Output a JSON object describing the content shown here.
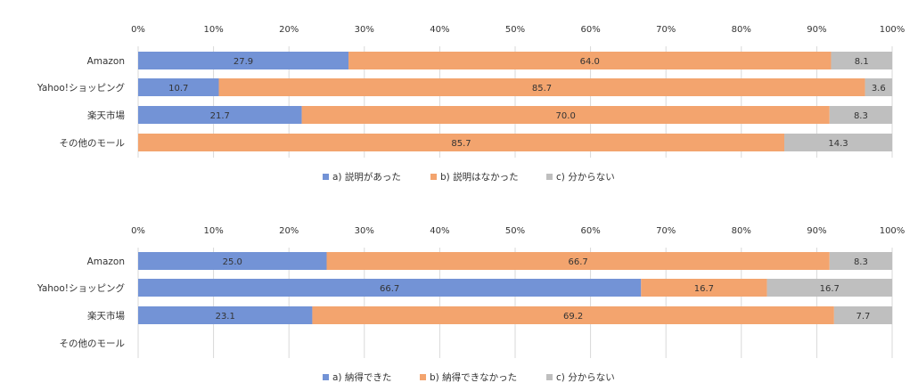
{
  "chart_data": [
    {
      "type": "bar",
      "orientation": "horizontal",
      "stacked": "percent",
      "categories": [
        "Amazon",
        "Yahoo!ショッピング",
        "楽天市場",
        "その他のモール"
      ],
      "series": [
        {
          "name": "a) 説明があった",
          "color": "#7393D6",
          "values": [
            27.9,
            10.7,
            21.7,
            0
          ]
        },
        {
          "name": "b) 説明はなかった",
          "color": "#F3A46E",
          "values": [
            64.0,
            85.7,
            70.0,
            85.7
          ]
        },
        {
          "name": "c) 分からない",
          "color": "#BFBFBF",
          "values": [
            8.1,
            3.6,
            8.3,
            14.3
          ]
        }
      ],
      "x_ticks": [
        "0%",
        "10%",
        "20%",
        "30%",
        "40%",
        "50%",
        "60%",
        "70%",
        "80%",
        "90%",
        "100%"
      ],
      "xlim": [
        0,
        100
      ],
      "grid": true,
      "legend_position": "bottom",
      "title": "",
      "xlabel": "",
      "ylabel": ""
    },
    {
      "type": "bar",
      "orientation": "horizontal",
      "stacked": "percent",
      "categories": [
        "Amazon",
        "Yahoo!ショッピング",
        "楽天市場",
        "その他のモール"
      ],
      "series": [
        {
          "name": "a) 納得できた",
          "color": "#7393D6",
          "values": [
            25.0,
            66.7,
            23.1,
            null
          ]
        },
        {
          "name": "b) 納得できなかった",
          "color": "#F3A46E",
          "values": [
            66.7,
            16.7,
            69.2,
            null
          ]
        },
        {
          "name": "c) 分からない",
          "color": "#BFBFBF",
          "values": [
            8.3,
            16.7,
            7.7,
            null
          ]
        }
      ],
      "x_ticks": [
        "0%",
        "10%",
        "20%",
        "30%",
        "40%",
        "50%",
        "60%",
        "70%",
        "80%",
        "90%",
        "100%"
      ],
      "xlim": [
        0,
        100
      ],
      "grid": true,
      "legend_position": "bottom",
      "title": "",
      "xlabel": "",
      "ylabel": ""
    }
  ]
}
